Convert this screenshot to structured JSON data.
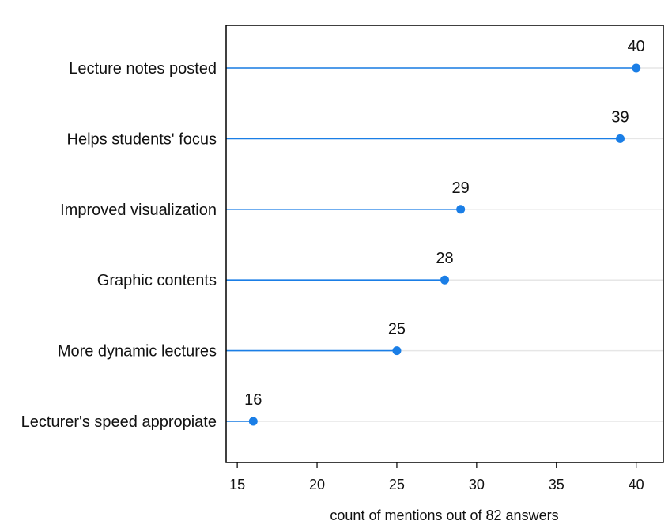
{
  "chart_data": {
    "type": "lollipop",
    "categories": [
      "Lecture notes posted",
      "Helps students' focus",
      "Improved visualization",
      "Graphic contents",
      "More dynamic lectures",
      "Lecturer's speed appropiate"
    ],
    "values": [
      40,
      39,
      29,
      28,
      25,
      16
    ],
    "data_labels": [
      "40",
      "39",
      "29",
      "28",
      "25",
      "16"
    ],
    "xlabel": "count of mentions out of 82 answers",
    "ylabel": "",
    "xlim": [
      14.3,
      41.7
    ],
    "xticks": [
      15,
      20,
      25,
      30,
      35,
      40
    ],
    "xtick_labels": [
      "15",
      "20",
      "25",
      "30",
      "35",
      "40"
    ],
    "grid": "horizontal",
    "legend": "none",
    "colors": {
      "series": "#1a7ee6",
      "grid": "#e6e6e6",
      "frame": "#000000"
    }
  }
}
